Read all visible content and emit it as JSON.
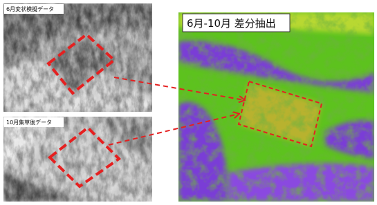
{
  "panels": [
    {
      "label": "6月変状模擬データ"
    },
    {
      "label": "10月集草後データ"
    },
    {
      "label": "6月-10月 差分抽出"
    }
  ]
}
